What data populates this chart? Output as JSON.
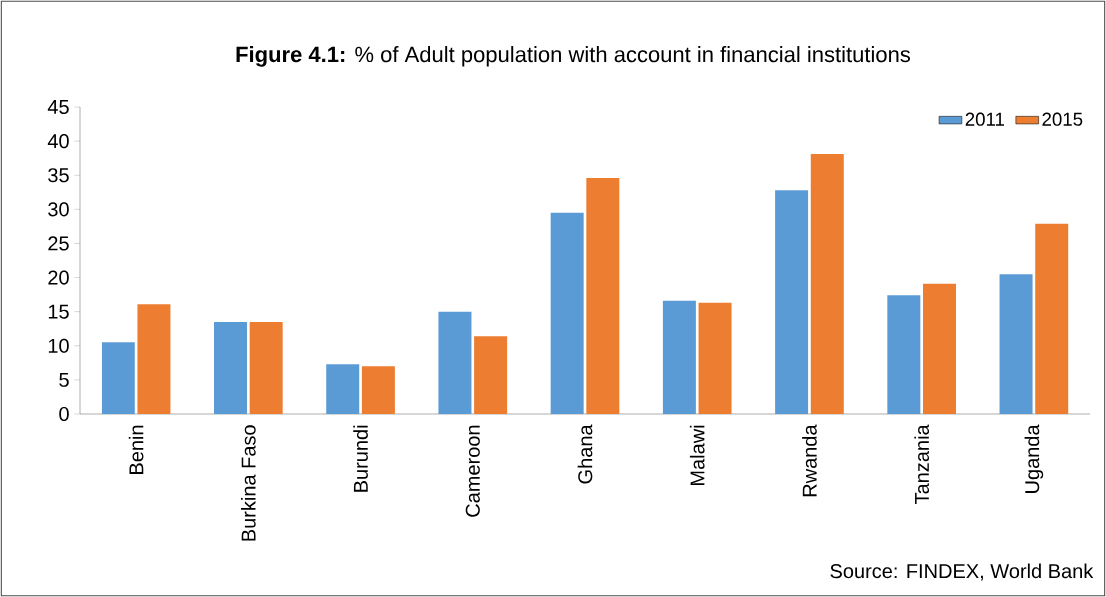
{
  "chart_data": {
    "type": "bar",
    "title": "**Figure 4.1:** % of Adult population with account in financial institutions",
    "categories": [
      "Benin",
      "Burkina Faso",
      "Burundi",
      "Cameroon",
      "Ghana",
      "Malawi",
      "Rwanda",
      "Tanzania",
      "Uganda"
    ],
    "series": [
      {
        "name": "2011",
        "color": "#5b9bd5",
        "values": [
          10.5,
          13.5,
          7.3,
          15.0,
          29.5,
          16.6,
          32.8,
          17.4,
          20.5
        ]
      },
      {
        "name": "2015",
        "color": "#ed7d31",
        "values": [
          16.1,
          13.5,
          7.0,
          11.4,
          34.6,
          16.3,
          38.1,
          19.1,
          27.9
        ]
      }
    ],
    "ylim": [
      0,
      45
    ],
    "yticks": [
      0,
      5,
      10,
      15,
      20,
      25,
      30,
      35,
      40,
      45
    ],
    "grid": false,
    "legend": "top right",
    "annotations": [
      "Source: FINDEX, World Bank"
    ]
  }
}
